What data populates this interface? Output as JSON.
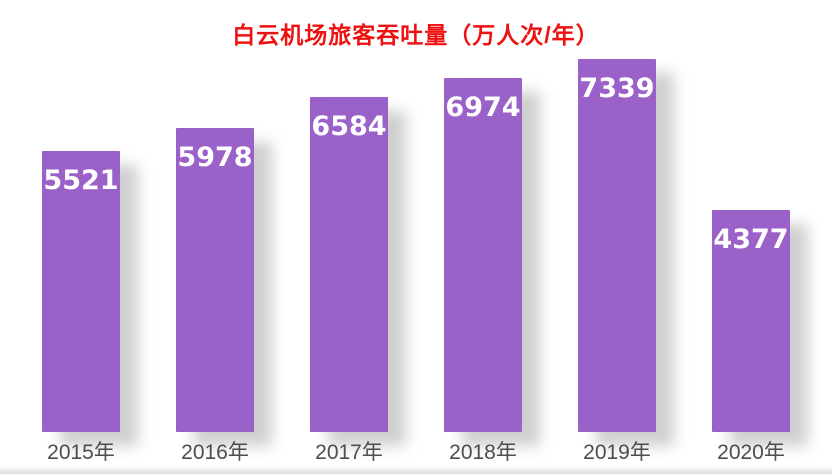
{
  "chart_data": {
    "type": "bar",
    "title": "白云机场旅客吞吐量（万人次/年）",
    "categories": [
      "2015年",
      "2016年",
      "2017年",
      "2018年",
      "2019年",
      "2020年"
    ],
    "values": [
      5521,
      5978,
      6584,
      6974,
      7339,
      4377
    ],
    "xlabel": "",
    "ylabel": "",
    "ylim": [
      0,
      7400
    ],
    "grid": false,
    "legend": false,
    "bar_color": "#9a62c8",
    "title_color": "#ee1111",
    "value_label_color": "#ffffff",
    "axis_label_color": "#4d4d4d",
    "background_color": "#ffffff"
  }
}
